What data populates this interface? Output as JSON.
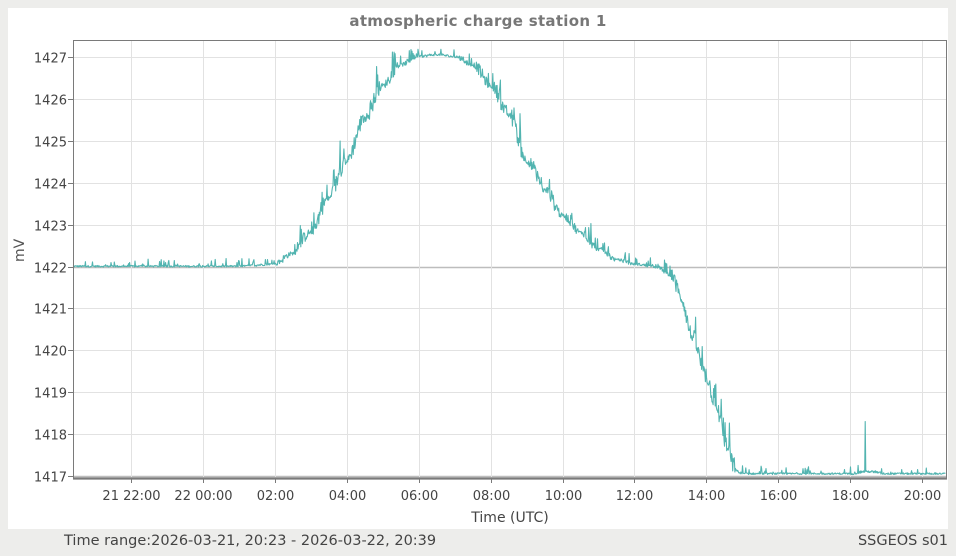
{
  "window": {
    "title": "atmospheric charge station 1",
    "footer_left": "Time range:2026-03-21, 20:23 - 2026-03-22, 20:39",
    "footer_right": "SSGEOS s01"
  },
  "colors": {
    "series": "#52b4b0",
    "grid": "#e2e2e2",
    "axis": "#7a7a7a",
    "baseline": "#bdbdbd",
    "background": "#ededeb",
    "panel": "#ffffff"
  },
  "chart_data": {
    "type": "line",
    "title": "atmospheric charge station 1",
    "xlabel": "Time (UTC)",
    "ylabel": "mV",
    "ylim": [
      1417,
      1427
    ],
    "y_ticks": [
      1417,
      1418,
      1419,
      1420,
      1421,
      1422,
      1423,
      1424,
      1425,
      1426,
      1427
    ],
    "x_range": [
      "2026-03-21 20:23",
      "2026-03-22 20:39"
    ],
    "x_tick_labels": [
      "21 22:00",
      "22 00:00",
      "02:00",
      "04:00",
      "06:00",
      "08:00",
      "10:00",
      "12:00",
      "14:00",
      "16:00",
      "18:00",
      "20:00"
    ],
    "x_tick_hours": [
      -2,
      0,
      2,
      4,
      6,
      8,
      10,
      12,
      14,
      16,
      18,
      20
    ],
    "grid": true,
    "legend": null,
    "series": [
      {
        "name": "atmospheric charge station 1",
        "x_hours_from_22_00": [
          -3.62,
          -3.0,
          -2.0,
          -1.0,
          0.0,
          1.0,
          2.0,
          2.5,
          3.0,
          3.5,
          4.0,
          4.5,
          5.0,
          5.5,
          6.0,
          6.5,
          7.0,
          7.5,
          8.0,
          8.5,
          9.0,
          9.5,
          10.0,
          10.5,
          11.0,
          11.5,
          12.0,
          12.5,
          13.0,
          13.3,
          13.6,
          14.0,
          14.3,
          14.6,
          14.8,
          15.0,
          16.0,
          17.0,
          18.0,
          18.45,
          19.0,
          20.0,
          20.65
        ],
        "values": [
          1422.0,
          1422.0,
          1422.0,
          1422.0,
          1422.0,
          1422.0,
          1422.05,
          1422.3,
          1422.8,
          1423.6,
          1424.5,
          1425.5,
          1426.3,
          1426.8,
          1427.0,
          1427.05,
          1427.0,
          1426.8,
          1426.3,
          1425.6,
          1424.5,
          1423.8,
          1423.2,
          1422.8,
          1422.4,
          1422.15,
          1422.05,
          1422.0,
          1421.8,
          1421.2,
          1420.3,
          1419.3,
          1418.5,
          1417.6,
          1417.1,
          1417.05,
          1417.05,
          1417.05,
          1417.05,
          1417.1,
          1417.05,
          1417.05,
          1417.05
        ],
        "notes": "Noisy signal with upward spikes; flat ~1422 until ~02:00, rises to ~1427 around 06:00, decays back to 1422 by ~12:00, drops to ~1417 between 13:00 and 14:50, flat ~1417 afterwards with an isolated spike to ~1418.3 near 18:25."
      }
    ]
  }
}
